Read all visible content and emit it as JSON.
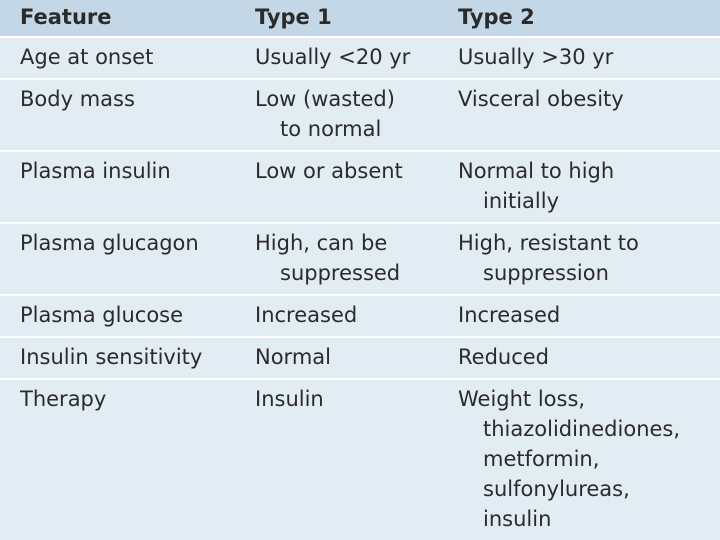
{
  "table": {
    "header": [
      "Feature",
      "Type 1",
      "Type 2"
    ],
    "rows": [
      [
        [
          "Age at onset"
        ],
        [
          "Usually <20 yr"
        ],
        [
          "Usually >30 yr"
        ]
      ],
      [
        [
          "Body mass"
        ],
        [
          "Low (wasted)",
          "to normal"
        ],
        [
          "Visceral obesity"
        ]
      ],
      [
        [
          "Plasma insulin"
        ],
        [
          "Low or absent"
        ],
        [
          "Normal to high",
          "initially"
        ]
      ],
      [
        [
          "Plasma glucagon"
        ],
        [
          "High, can be",
          "suppressed"
        ],
        [
          "High, resistant to",
          "suppression"
        ]
      ],
      [
        [
          "Plasma glucose"
        ],
        [
          "Increased"
        ],
        [
          "Increased"
        ]
      ],
      [
        [
          "Insulin sensitivity"
        ],
        [
          "Normal"
        ],
        [
          "Reduced"
        ]
      ],
      [
        [
          "Therapy"
        ],
        [
          "Insulin"
        ],
        [
          "Weight loss,",
          "thiazolidinediones,",
          "metformin,",
          "sulfonylureas,",
          "insulin"
        ]
      ]
    ]
  }
}
